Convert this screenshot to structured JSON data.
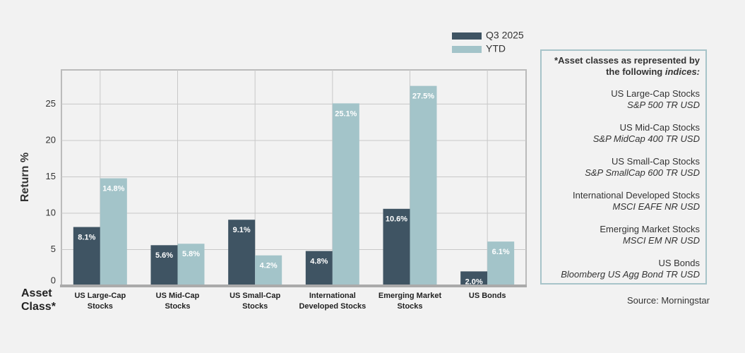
{
  "chart_data": {
    "type": "bar",
    "y_label": "Return %",
    "x_label": "Asset Class*",
    "categories": [
      "US Large-Cap Stocks",
      "US Mid-Cap Stocks",
      "US Small-Cap Stocks",
      "International Developed Stocks",
      "Emerging Market Stocks",
      "US Bonds"
    ],
    "series": [
      {
        "name": "Q3 2025",
        "color": "#3f5463",
        "values": [
          8.1,
          5.6,
          9.1,
          4.8,
          10.6,
          2.0
        ],
        "value_labels": [
          "8.1%",
          "5.6%",
          "9.1%",
          "4.8%",
          "10.6%",
          "2.0%"
        ]
      },
      {
        "name": "YTD",
        "color": "#a3c4c9",
        "values": [
          14.8,
          5.8,
          4.2,
          25.1,
          27.5,
          6.1
        ],
        "value_labels": [
          "14.8%",
          "5.8%",
          "4.2%",
          "25.1%",
          "27.5%",
          "6.1%"
        ]
      }
    ],
    "ylim": [
      0,
      29.7
    ],
    "yticks": [
      0,
      5,
      10,
      15,
      20,
      25
    ],
    "grid": true
  },
  "sidebar": {
    "heading": "*Asset classes as represented by the following",
    "heading_em": "indices:",
    "items": [
      {
        "name": "US Large-Cap Stocks",
        "index": "S&P 500 TR USD"
      },
      {
        "name": "US Mid-Cap Stocks",
        "index": "S&P MidCap 400 TR USD"
      },
      {
        "name": "US Small-Cap Stocks",
        "index": "S&P SmallCap 600 TR USD"
      },
      {
        "name": "International Developed Stocks",
        "index": "MSCI EAFE NR USD"
      },
      {
        "name": "Emerging Market Stocks",
        "index": "MSCI EM NR USD"
      },
      {
        "name": "US Bonds",
        "index": "Bloomberg US Agg Bond TR USD"
      }
    ]
  },
  "source": "Source: Morningstar"
}
